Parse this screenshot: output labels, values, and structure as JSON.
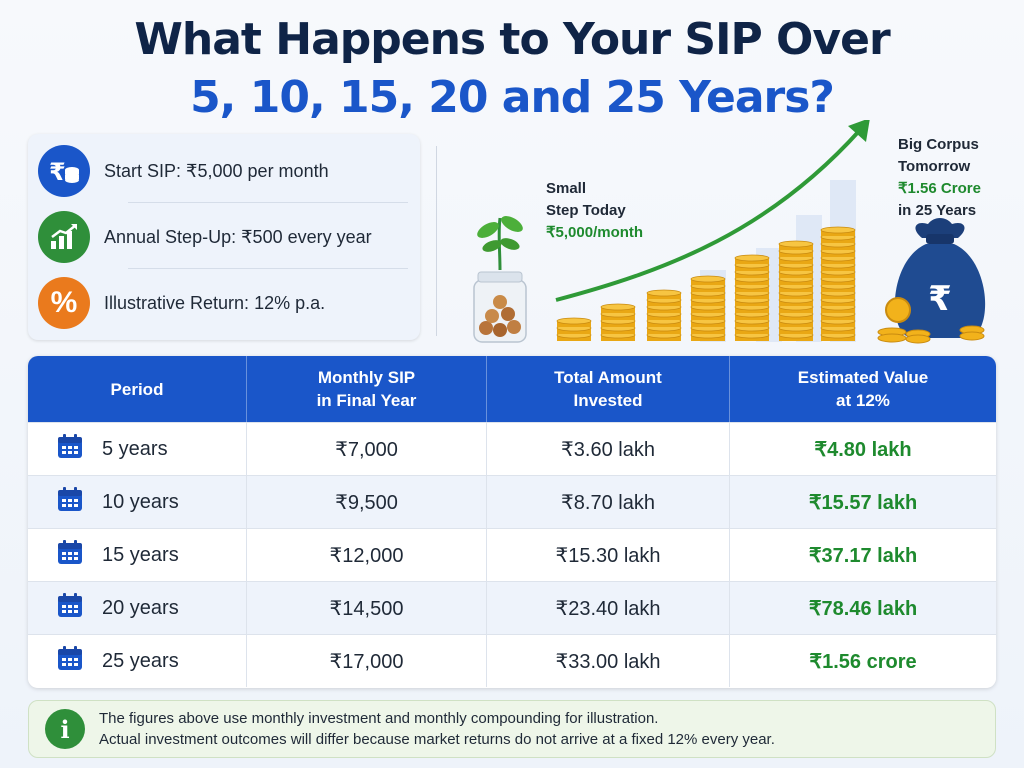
{
  "title": {
    "line1": "What Happens to Your SIP Over",
    "line2": "5, 10, 15, 20 and 25 Years?"
  },
  "info": {
    "items": [
      {
        "icon": "rupee-coins-icon",
        "label": "Start SIP:",
        "value": "₹5,000 per month",
        "color": "#1a56c9"
      },
      {
        "icon": "growth-chart-icon",
        "label": "Annual Step-Up:",
        "value": "₹500 every year",
        "color": "#2f8f3a"
      },
      {
        "icon": "percent-icon",
        "label": "Illustrative Return:",
        "value": "12% p.a.",
        "color": "#ea7a1d"
      }
    ]
  },
  "illustration": {
    "small_step": {
      "line1": "Small",
      "line2": "Step Today",
      "amount": "₹5,000/month"
    },
    "big_corpus": {
      "line1": "Big Corpus",
      "line2": "Tomorrow",
      "amount": "₹1.56 Crore",
      "line4": "in 25 Years"
    },
    "icons": [
      "plant-jar-icon",
      "coin-stacks-icon",
      "growth-arrow-icon",
      "money-bag-icon"
    ]
  },
  "table": {
    "headers": [
      {
        "line1": "Period",
        "line2": ""
      },
      {
        "line1": "Monthly SIP",
        "line2": "in Final Year"
      },
      {
        "line1": "Total Amount",
        "line2": "Invested"
      },
      {
        "line1": "Estimated Value",
        "line2": "at 12%"
      }
    ],
    "rows": [
      {
        "period": "5 years",
        "monthly": "₹7,000",
        "invested": "₹3.60 lakh",
        "estimated": "₹4.80 lakh"
      },
      {
        "period": "10 years",
        "monthly": "₹9,500",
        "invested": "₹8.70 lakh",
        "estimated": "₹15.57 lakh"
      },
      {
        "period": "15 years",
        "monthly": "₹12,000",
        "invested": "₹15.30 lakh",
        "estimated": "₹37.17 lakh"
      },
      {
        "period": "20 years",
        "monthly": "₹14,500",
        "invested": "₹23.40 lakh",
        "estimated": "₹78.46 lakh"
      },
      {
        "period": "25 years",
        "monthly": "₹17,000",
        "invested": "₹33.00 lakh",
        "estimated": "₹1.56 crore"
      }
    ]
  },
  "note": {
    "icon": "info-icon",
    "line1": "The figures above use monthly investment and monthly compounding for illustration.",
    "line2": "Actual investment outcomes will differ because market returns do not arrive at a fixed 12% every year."
  },
  "colors": {
    "navy": "#0f2447",
    "blue": "#1a56c9",
    "green": "#1e8a2e",
    "orange": "#ea7a1d",
    "gold": "#f2b21b"
  }
}
